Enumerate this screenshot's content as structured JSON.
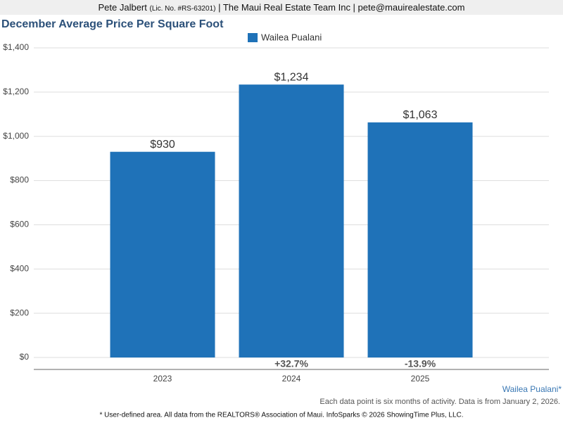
{
  "header": {
    "name": "Pete Jalbert",
    "license": "(Lic. No. #RS-63201)",
    "rest": "| The Maui Real Estate Team Inc | pete@mauirealestate.com"
  },
  "chart_data": {
    "type": "bar",
    "title": "December Average Price Per Square Foot",
    "categories": [
      "2023",
      "2024",
      "2025"
    ],
    "series": [
      {
        "name": "Wailea Pualani",
        "color": "#1f72b8",
        "values": [
          930,
          1234,
          1063
        ],
        "value_labels": [
          "$930",
          "$1,234",
          "$1,063"
        ]
      }
    ],
    "change_labels": [
      null,
      "+32.7%",
      "-13.9%"
    ],
    "ylim": [
      0,
      1400
    ],
    "yticks": [
      {
        "value": 0,
        "label": "$0"
      },
      {
        "value": 200,
        "label": "$200"
      },
      {
        "value": 400,
        "label": "$400"
      },
      {
        "value": 600,
        "label": "$600"
      },
      {
        "value": 800,
        "label": "$800"
      },
      {
        "value": 1000,
        "label": "$1,000"
      },
      {
        "value": 1200,
        "label": "$1,200"
      },
      {
        "value": 1400,
        "label": "$1,400"
      }
    ],
    "grid": true
  },
  "footer": {
    "area": "Wailea Pualani*",
    "note": "Each data point is six months of activity. Data is from January 2, 2026.",
    "credit": "* User-defined area. All data from the REALTORS® Association of Maui. InfoSparks © 2026 ShowingTime Plus, LLC."
  }
}
